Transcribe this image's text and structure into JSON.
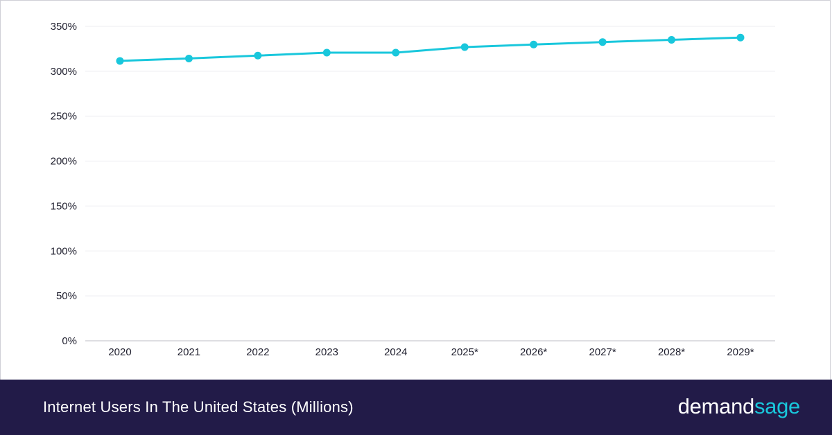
{
  "chart_data": {
    "type": "line",
    "title": "Internet Users In The United States (Millions)",
    "categories": [
      "2020",
      "2021",
      "2022",
      "2023",
      "2024",
      "2025*",
      "2026*",
      "2027*",
      "2028*",
      "2029*"
    ],
    "series": [
      {
        "values": [
          311.5,
          314.2,
          317.4,
          320.7,
          320.7,
          326.9,
          329.8,
          332.5,
          335.0,
          337.5
        ]
      }
    ],
    "yticks": [
      "0%",
      "50%",
      "100%",
      "150%",
      "200%",
      "250%",
      "300%",
      "350%"
    ],
    "ylim": [
      0,
      350
    ],
    "ytick_step": 50,
    "grid": true,
    "legend": "none",
    "colors": {
      "line": "#19c7dc",
      "grid": "#ececf0",
      "axis": "#bdbdc4",
      "footer_bg": "#221b48"
    }
  },
  "footer": {
    "title": "Internet Users In The United States (Millions)",
    "brand_part1": "demand",
    "brand_part2": "sage"
  }
}
